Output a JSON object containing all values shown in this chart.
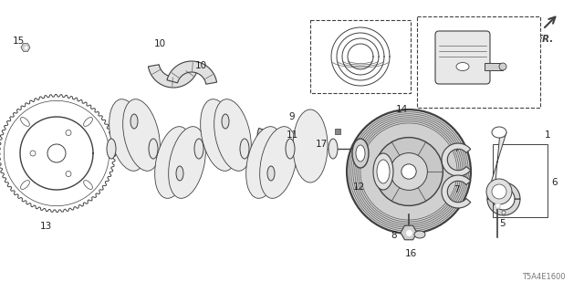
{
  "bg_color": "#ffffff",
  "line_color": "#404040",
  "label_color": "#222222",
  "diagram_code": "T5A4E1600",
  "figsize": [
    6.4,
    3.2
  ],
  "dpi": 100
}
